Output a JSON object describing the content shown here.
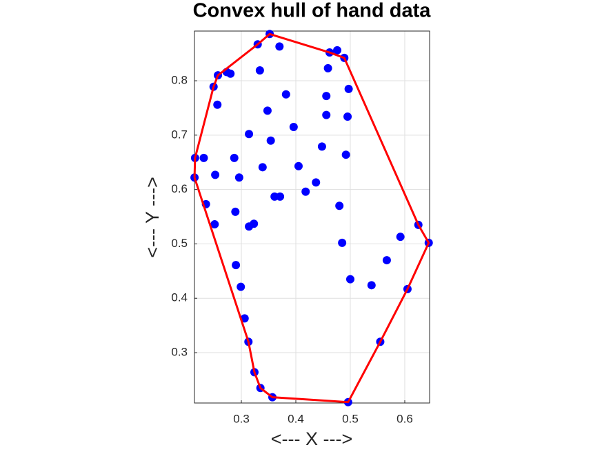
{
  "chart_data": {
    "type": "scatter",
    "title": "Convex hull of hand data",
    "xlabel": "<--- X --->",
    "ylabel": "<--- Y --->",
    "xlim": [
      0.2139,
      0.6456
    ],
    "ylim": [
      0.2074,
      0.8914
    ],
    "xticks": [
      0.3,
      0.4,
      0.5,
      0.6
    ],
    "yticks": [
      0.3,
      0.4,
      0.5,
      0.6,
      0.7,
      0.8
    ],
    "grid": true,
    "series": [
      {
        "type": "scatter",
        "color": "#0000ff",
        "x": [
          0.214,
          0.215,
          0.231,
          0.235,
          0.251,
          0.252,
          0.249,
          0.256,
          0.257,
          0.273,
          0.28,
          0.287,
          0.289,
          0.29,
          0.296,
          0.299,
          0.306,
          0.313,
          0.314,
          0.314,
          0.323,
          0.324,
          0.33,
          0.334,
          0.335,
          0.339,
          0.348,
          0.352,
          0.354,
          0.357,
          0.361,
          0.37,
          0.371,
          0.382,
          0.396,
          0.405,
          0.418,
          0.437,
          0.448,
          0.456,
          0.456,
          0.459,
          0.462,
          0.476,
          0.48,
          0.485,
          0.489,
          0.492,
          0.495,
          0.496,
          0.497,
          0.5,
          0.539,
          0.555,
          0.567,
          0.592,
          0.605,
          0.625,
          0.644
        ],
        "y": [
          0.622,
          0.658,
          0.658,
          0.573,
          0.536,
          0.627,
          0.789,
          0.756,
          0.81,
          0.816,
          0.813,
          0.658,
          0.559,
          0.461,
          0.622,
          0.421,
          0.363,
          0.32,
          0.702,
          0.532,
          0.537,
          0.264,
          0.867,
          0.819,
          0.235,
          0.641,
          0.745,
          0.886,
          0.69,
          0.218,
          0.587,
          0.863,
          0.587,
          0.775,
          0.715,
          0.643,
          0.596,
          0.613,
          0.679,
          0.772,
          0.737,
          0.823,
          0.852,
          0.856,
          0.57,
          0.502,
          0.842,
          0.664,
          0.734,
          0.209,
          0.785,
          0.435,
          0.424,
          0.32,
          0.47,
          0.513,
          0.417,
          0.535,
          0.502
        ]
      },
      {
        "type": "line",
        "color": "#ff0000",
        "x": [
          0.214,
          0.215,
          0.249,
          0.257,
          0.33,
          0.352,
          0.462,
          0.489,
          0.625,
          0.644,
          0.605,
          0.555,
          0.496,
          0.357,
          0.335,
          0.324,
          0.313,
          0.214
        ],
        "y": [
          0.622,
          0.658,
          0.789,
          0.81,
          0.867,
          0.886,
          0.852,
          0.842,
          0.535,
          0.502,
          0.417,
          0.32,
          0.209,
          0.218,
          0.235,
          0.264,
          0.32,
          0.622
        ]
      }
    ]
  }
}
